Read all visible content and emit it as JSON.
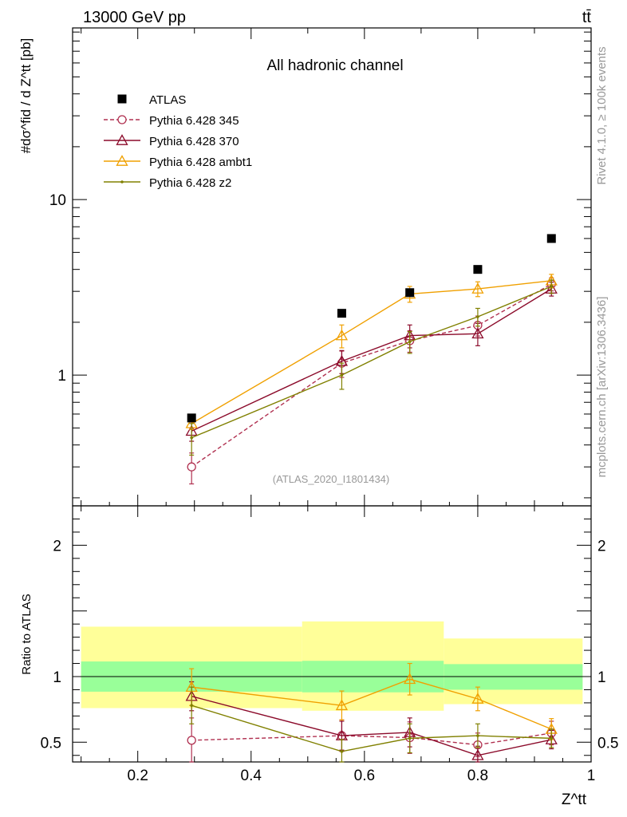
{
  "header": {
    "left": "13000 GeV pp",
    "right": "tt̄"
  },
  "side_labels": {
    "rivet": "Rivet 4.1.0, ≥ 100k events",
    "mcplots": "mcplots.cern.ch [arXiv:1306.3436]"
  },
  "chart_data": [
    {
      "type": "line",
      "panel": "main",
      "title": "All hadronic channel",
      "watermark": "(ATLAS_2020_I1801434)",
      "ylabel": "#dσ^fid / d Z^tt [pb]",
      "yscale": "log",
      "ylim": [
        0.18,
        95
      ],
      "xlim": [
        0.085,
        1.0
      ],
      "y_tick_labels": [
        "1",
        "10"
      ],
      "legend_position": "top-left",
      "series": [
        {
          "name": "ATLAS",
          "color": "#000000",
          "marker": "filled-square",
          "x": [
            0.295,
            0.56,
            0.68,
            0.8,
            0.93
          ],
          "y": [
            0.57,
            2.25,
            2.95,
            4.0,
            6.0
          ],
          "yerr": [
            0.0,
            0.0,
            0.0,
            0.0,
            0.0
          ]
        },
        {
          "name": "Pythia 6.428 345",
          "color": "#b03050",
          "marker": "open-circle",
          "dashed": true,
          "x": [
            0.295,
            0.56,
            0.68,
            0.8,
            0.93
          ],
          "y": [
            0.3,
            1.17,
            1.57,
            1.92,
            3.3
          ],
          "yerr": [
            0.06,
            0.2,
            0.22,
            0.25,
            0.28
          ]
        },
        {
          "name": "Pythia 6.428 370",
          "color": "#8b0a2a",
          "marker": "open-triangle",
          "dashed": false,
          "x": [
            0.295,
            0.56,
            0.68,
            0.8,
            0.93
          ],
          "y": [
            0.48,
            1.2,
            1.68,
            1.72,
            3.1
          ],
          "yerr": [
            0.06,
            0.18,
            0.25,
            0.25,
            0.28
          ]
        },
        {
          "name": "Pythia 6.428 ambt1",
          "color": "#f0a000",
          "marker": "open-triangle",
          "dashed": false,
          "x": [
            0.295,
            0.56,
            0.68,
            0.8,
            0.93
          ],
          "y": [
            0.53,
            1.68,
            2.9,
            3.1,
            3.45
          ],
          "yerr": [
            0.04,
            0.25,
            0.3,
            0.3,
            0.3
          ]
        },
        {
          "name": "Pythia 6.428 z2",
          "color": "#808000",
          "marker": "dot",
          "dashed": false,
          "x": [
            0.295,
            0.56,
            0.68,
            0.8,
            0.93
          ],
          "y": [
            0.44,
            1.0,
            1.55,
            2.15,
            3.2
          ],
          "yerr": [
            0.09,
            0.17,
            0.22,
            0.25,
            0.28
          ]
        }
      ]
    },
    {
      "type": "line",
      "panel": "ratio",
      "ylabel": "Ratio to ATLAS",
      "ylim": [
        0.35,
        2.3
      ],
      "xlim": [
        0.085,
        1.0
      ],
      "xlabel": "Z^tt",
      "x_tick_labels": [
        "0.2",
        "0.4",
        "0.6",
        "0.8",
        "1"
      ],
      "y_tick_labels": [
        "0.5",
        "1",
        "2"
      ],
      "bands": [
        {
          "x0": 0.1,
          "x1": 0.49,
          "inner": [
            0.885,
            1.115
          ],
          "outer": [
            0.76,
            1.38
          ]
        },
        {
          "x0": 0.49,
          "x1": 0.74,
          "inner": [
            0.88,
            1.12
          ],
          "outer": [
            0.74,
            1.42
          ]
        },
        {
          "x0": 0.74,
          "x1": 0.985,
          "inner": [
            0.9,
            1.095
          ],
          "outer": [
            0.79,
            1.29
          ]
        }
      ],
      "series": [
        {
          "name": "Pythia 6.428 345",
          "color": "#b03050",
          "marker": "open-circle",
          "dashed": true,
          "x": [
            0.295,
            0.56,
            0.68,
            0.8,
            0.93
          ],
          "y": [
            0.515,
            0.55,
            0.535,
            0.48,
            0.57
          ],
          "yerr": [
            0.17,
            0.12,
            0.12,
            0.09,
            0.09
          ]
        },
        {
          "name": "Pythia 6.428 370",
          "color": "#8b0a2a",
          "marker": "open-triangle",
          "dashed": false,
          "x": [
            0.295,
            0.56,
            0.68,
            0.8,
            0.93
          ],
          "y": [
            0.85,
            0.55,
            0.575,
            0.4,
            0.52
          ],
          "yerr": [
            0.11,
            0.11,
            0.11,
            0.07,
            0.07
          ]
        },
        {
          "name": "Pythia 6.428 ambt1",
          "color": "#f0a000",
          "marker": "open-triangle",
          "dashed": false,
          "x": [
            0.295,
            0.56,
            0.68,
            0.8,
            0.93
          ],
          "y": [
            0.92,
            0.78,
            0.98,
            0.83,
            0.6
          ],
          "yerr": [
            0.14,
            0.11,
            0.12,
            0.09,
            0.08
          ]
        },
        {
          "name": "Pythia 6.428 z2",
          "color": "#808000",
          "marker": "dot",
          "dashed": false,
          "x": [
            0.295,
            0.56,
            0.68,
            0.8,
            0.93
          ],
          "y": [
            0.78,
            0.43,
            0.53,
            0.55,
            0.53
          ],
          "yerr": [
            0.14,
            0.09,
            0.11,
            0.09,
            0.07
          ]
        }
      ]
    }
  ]
}
